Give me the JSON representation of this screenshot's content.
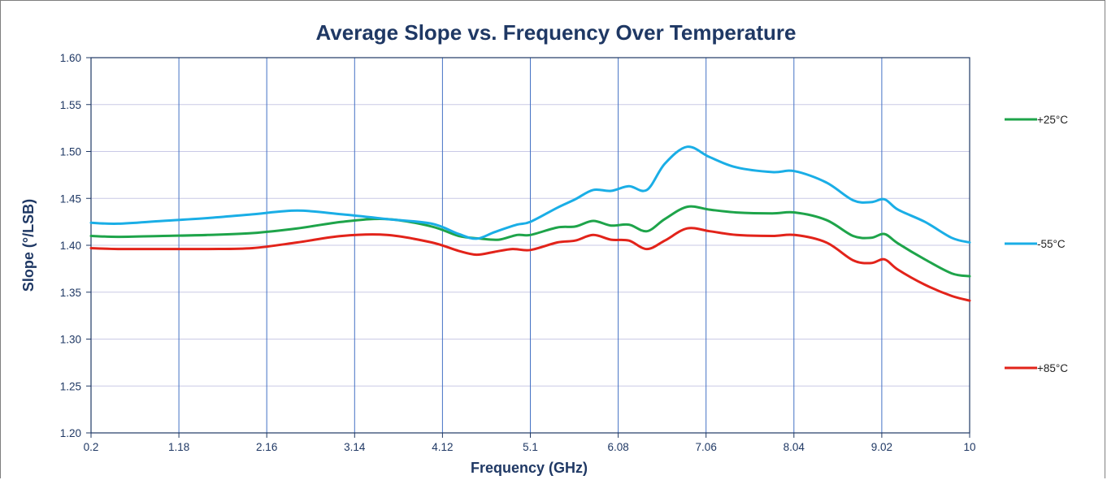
{
  "chart_data": {
    "type": "line",
    "title": "Average Slope vs. Frequency Over Temperature",
    "xlabel": "Frequency (GHz)",
    "ylabel": "Slope (°/LSB)",
    "xlim": [
      0.2,
      10
    ],
    "ylim": [
      1.2,
      1.6
    ],
    "x_ticks": [
      "0.2",
      "1.18",
      "2.16",
      "3.14",
      "4.12",
      "5.1",
      "6.08",
      "7.06",
      "8.04",
      "9.02",
      "10"
    ],
    "y_ticks": [
      "1.20",
      "1.25",
      "1.30",
      "1.35",
      "1.40",
      "1.45",
      "1.50",
      "1.55",
      "1.60"
    ],
    "grid": "on",
    "legend_position": "right",
    "series": [
      {
        "name": "+25°C",
        "color": "#1ea44a",
        "points": [
          [
            0.2,
            1.41
          ],
          [
            0.5,
            1.409
          ],
          [
            1.0,
            1.41
          ],
          [
            1.5,
            1.411
          ],
          [
            2.0,
            1.413
          ],
          [
            2.5,
            1.418
          ],
          [
            3.0,
            1.425
          ],
          [
            3.5,
            1.428
          ],
          [
            4.0,
            1.42
          ],
          [
            4.3,
            1.41
          ],
          [
            4.55,
            1.407
          ],
          [
            4.75,
            1.406
          ],
          [
            4.95,
            1.411
          ],
          [
            5.1,
            1.411
          ],
          [
            5.4,
            1.419
          ],
          [
            5.6,
            1.42
          ],
          [
            5.8,
            1.426
          ],
          [
            6.0,
            1.421
          ],
          [
            6.2,
            1.422
          ],
          [
            6.4,
            1.415
          ],
          [
            6.6,
            1.428
          ],
          [
            6.85,
            1.441
          ],
          [
            7.1,
            1.438
          ],
          [
            7.4,
            1.435
          ],
          [
            7.8,
            1.434
          ],
          [
            8.05,
            1.435
          ],
          [
            8.4,
            1.427
          ],
          [
            8.7,
            1.41
          ],
          [
            8.9,
            1.408
          ],
          [
            9.05,
            1.412
          ],
          [
            9.2,
            1.402
          ],
          [
            9.5,
            1.385
          ],
          [
            9.8,
            1.37
          ],
          [
            10.0,
            1.367
          ]
        ]
      },
      {
        "name": "-55°C",
        "color": "#1aaee6",
        "points": [
          [
            0.2,
            1.424
          ],
          [
            0.5,
            1.423
          ],
          [
            1.0,
            1.426
          ],
          [
            1.5,
            1.429
          ],
          [
            2.0,
            1.433
          ],
          [
            2.5,
            1.437
          ],
          [
            3.0,
            1.433
          ],
          [
            3.5,
            1.428
          ],
          [
            4.0,
            1.423
          ],
          [
            4.3,
            1.412
          ],
          [
            4.5,
            1.407
          ],
          [
            4.7,
            1.414
          ],
          [
            4.95,
            1.422
          ],
          [
            5.1,
            1.425
          ],
          [
            5.4,
            1.44
          ],
          [
            5.6,
            1.449
          ],
          [
            5.8,
            1.459
          ],
          [
            6.0,
            1.458
          ],
          [
            6.2,
            1.463
          ],
          [
            6.4,
            1.459
          ],
          [
            6.6,
            1.487
          ],
          [
            6.85,
            1.505
          ],
          [
            7.1,
            1.494
          ],
          [
            7.4,
            1.483
          ],
          [
            7.8,
            1.478
          ],
          [
            8.05,
            1.479
          ],
          [
            8.4,
            1.467
          ],
          [
            8.7,
            1.448
          ],
          [
            8.9,
            1.446
          ],
          [
            9.05,
            1.449
          ],
          [
            9.2,
            1.438
          ],
          [
            9.5,
            1.425
          ],
          [
            9.8,
            1.408
          ],
          [
            10.0,
            1.403
          ]
        ]
      },
      {
        "name": "+85°C",
        "color": "#e2231a",
        "points": [
          [
            0.2,
            1.397
          ],
          [
            0.5,
            1.396
          ],
          [
            1.0,
            1.396
          ],
          [
            1.5,
            1.396
          ],
          [
            2.0,
            1.397
          ],
          [
            2.5,
            1.403
          ],
          [
            3.0,
            1.41
          ],
          [
            3.5,
            1.411
          ],
          [
            4.0,
            1.403
          ],
          [
            4.3,
            1.394
          ],
          [
            4.5,
            1.39
          ],
          [
            4.7,
            1.393
          ],
          [
            4.9,
            1.396
          ],
          [
            5.1,
            1.395
          ],
          [
            5.4,
            1.403
          ],
          [
            5.6,
            1.405
          ],
          [
            5.8,
            1.411
          ],
          [
            6.0,
            1.406
          ],
          [
            6.2,
            1.405
          ],
          [
            6.4,
            1.396
          ],
          [
            6.6,
            1.405
          ],
          [
            6.85,
            1.418
          ],
          [
            7.1,
            1.415
          ],
          [
            7.4,
            1.411
          ],
          [
            7.8,
            1.41
          ],
          [
            8.05,
            1.411
          ],
          [
            8.4,
            1.403
          ],
          [
            8.7,
            1.384
          ],
          [
            8.9,
            1.381
          ],
          [
            9.05,
            1.385
          ],
          [
            9.2,
            1.374
          ],
          [
            9.5,
            1.358
          ],
          [
            9.8,
            1.346
          ],
          [
            10.0,
            1.341
          ]
        ]
      }
    ]
  }
}
